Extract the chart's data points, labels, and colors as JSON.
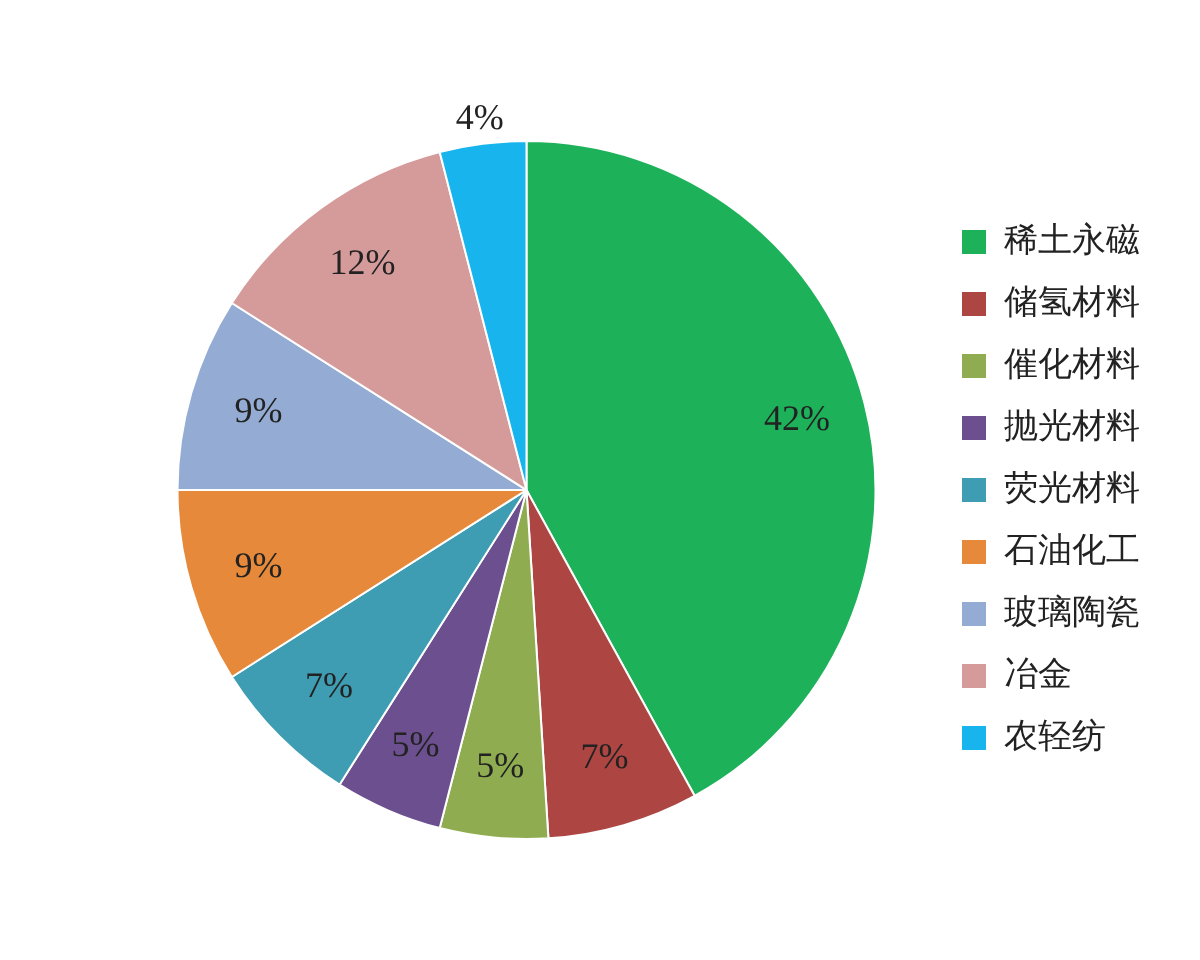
{
  "chart_data": {
    "type": "pie",
    "categories": [
      "稀土永磁",
      "储氢材料",
      "催化材料",
      "抛光材料",
      "荧光材料",
      "石油化工",
      "玻璃陶瓷",
      "冶金",
      "农轻纺"
    ],
    "values": [
      42,
      7,
      5,
      5,
      7,
      9,
      9,
      12,
      4
    ],
    "colors": [
      "#1db25a",
      "#ad4643",
      "#8fad50",
      "#6b4f8e",
      "#3f9db3",
      "#e6893a",
      "#94acd4",
      "#d59b9a",
      "#17b4ee"
    ],
    "value_labels": [
      "42%",
      "7%",
      "5%",
      "5%",
      "7%",
      "9%",
      "9%",
      "12%",
      "4%"
    ],
    "legend": "right"
  }
}
